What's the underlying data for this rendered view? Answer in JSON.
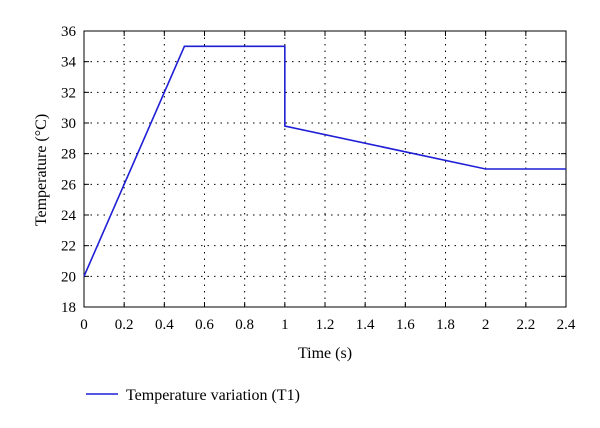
{
  "chart_data": {
    "type": "line",
    "title": "",
    "xlabel": "Time (s)",
    "ylabel": "Temperature (°C)",
    "xlim": [
      0,
      2.4
    ],
    "ylim": [
      18,
      36
    ],
    "xticks": [
      0,
      0.2,
      0.4,
      0.6,
      0.8,
      1,
      1.2,
      1.4,
      1.6,
      1.8,
      2,
      2.2,
      2.4
    ],
    "xtick_labels": [
      "0",
      "0.2",
      "0.4",
      "0.6",
      "0.8",
      "1",
      "1.2",
      "1.4",
      "1.6",
      "1.8",
      "2",
      "2.2",
      "2.4"
    ],
    "yticks": [
      18,
      20,
      22,
      24,
      26,
      28,
      30,
      32,
      34,
      36
    ],
    "ytick_labels": [
      "18",
      "20",
      "22",
      "24",
      "26",
      "28",
      "30",
      "32",
      "34",
      "36"
    ],
    "grid": true,
    "grid_style": "dotted",
    "legend_position": "bottom",
    "series": [
      {
        "name": "Temperature variation (T1)",
        "color": "#1f1fd6",
        "x": [
          0,
          0.5,
          1.0,
          1.0,
          2.0,
          2.4
        ],
        "y": [
          20,
          35,
          35,
          29.8,
          27,
          27
        ]
      }
    ]
  }
}
